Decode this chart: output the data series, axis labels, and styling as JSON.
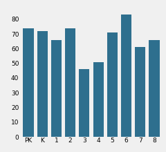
{
  "categories": [
    "PK",
    "K",
    "1",
    "2",
    "3",
    "4",
    "5",
    "6",
    "7",
    "8"
  ],
  "values": [
    74,
    72,
    66,
    74,
    46,
    51,
    71,
    83,
    61,
    66
  ],
  "bar_color": "#2e6f8e",
  "ylim": [
    0,
    90
  ],
  "yticks": [
    0,
    10,
    20,
    30,
    40,
    50,
    60,
    70,
    80
  ],
  "background_color": "#f0f0f0",
  "tick_fontsize": 6.5,
  "bar_width": 0.75
}
